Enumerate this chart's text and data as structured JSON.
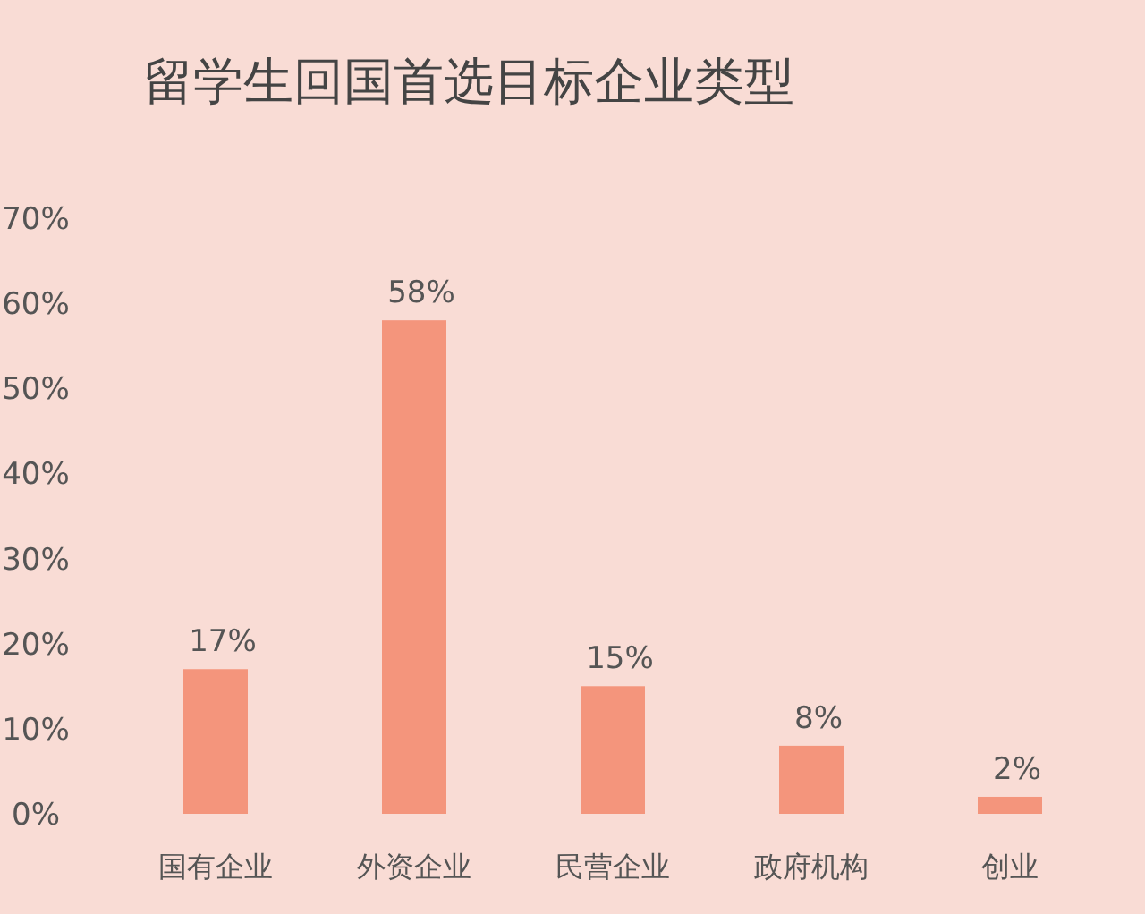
{
  "chart_data": {
    "type": "bar",
    "title": "留学生回国首选目标企业类型",
    "categories": [
      "国有企业",
      "外资企业",
      "民营企业",
      "政府机构",
      "创业"
    ],
    "values": [
      17,
      58,
      15,
      8,
      2
    ],
    "value_labels": [
      "17%",
      "58%",
      "15%",
      "8%",
      "2%"
    ],
    "color": "#f4957c",
    "ylim": [
      0,
      70
    ],
    "yticks": [
      {
        "value": 0,
        "label": "0%"
      },
      {
        "value": 10,
        "label": "10%"
      },
      {
        "value": 20,
        "label": "20%"
      },
      {
        "value": 30,
        "label": "30%"
      },
      {
        "value": 40,
        "label": "40%"
      },
      {
        "value": 50,
        "label": "50%"
      },
      {
        "value": 60,
        "label": "60%"
      },
      {
        "value": 70,
        "label": "70%"
      }
    ],
    "grid": false
  }
}
